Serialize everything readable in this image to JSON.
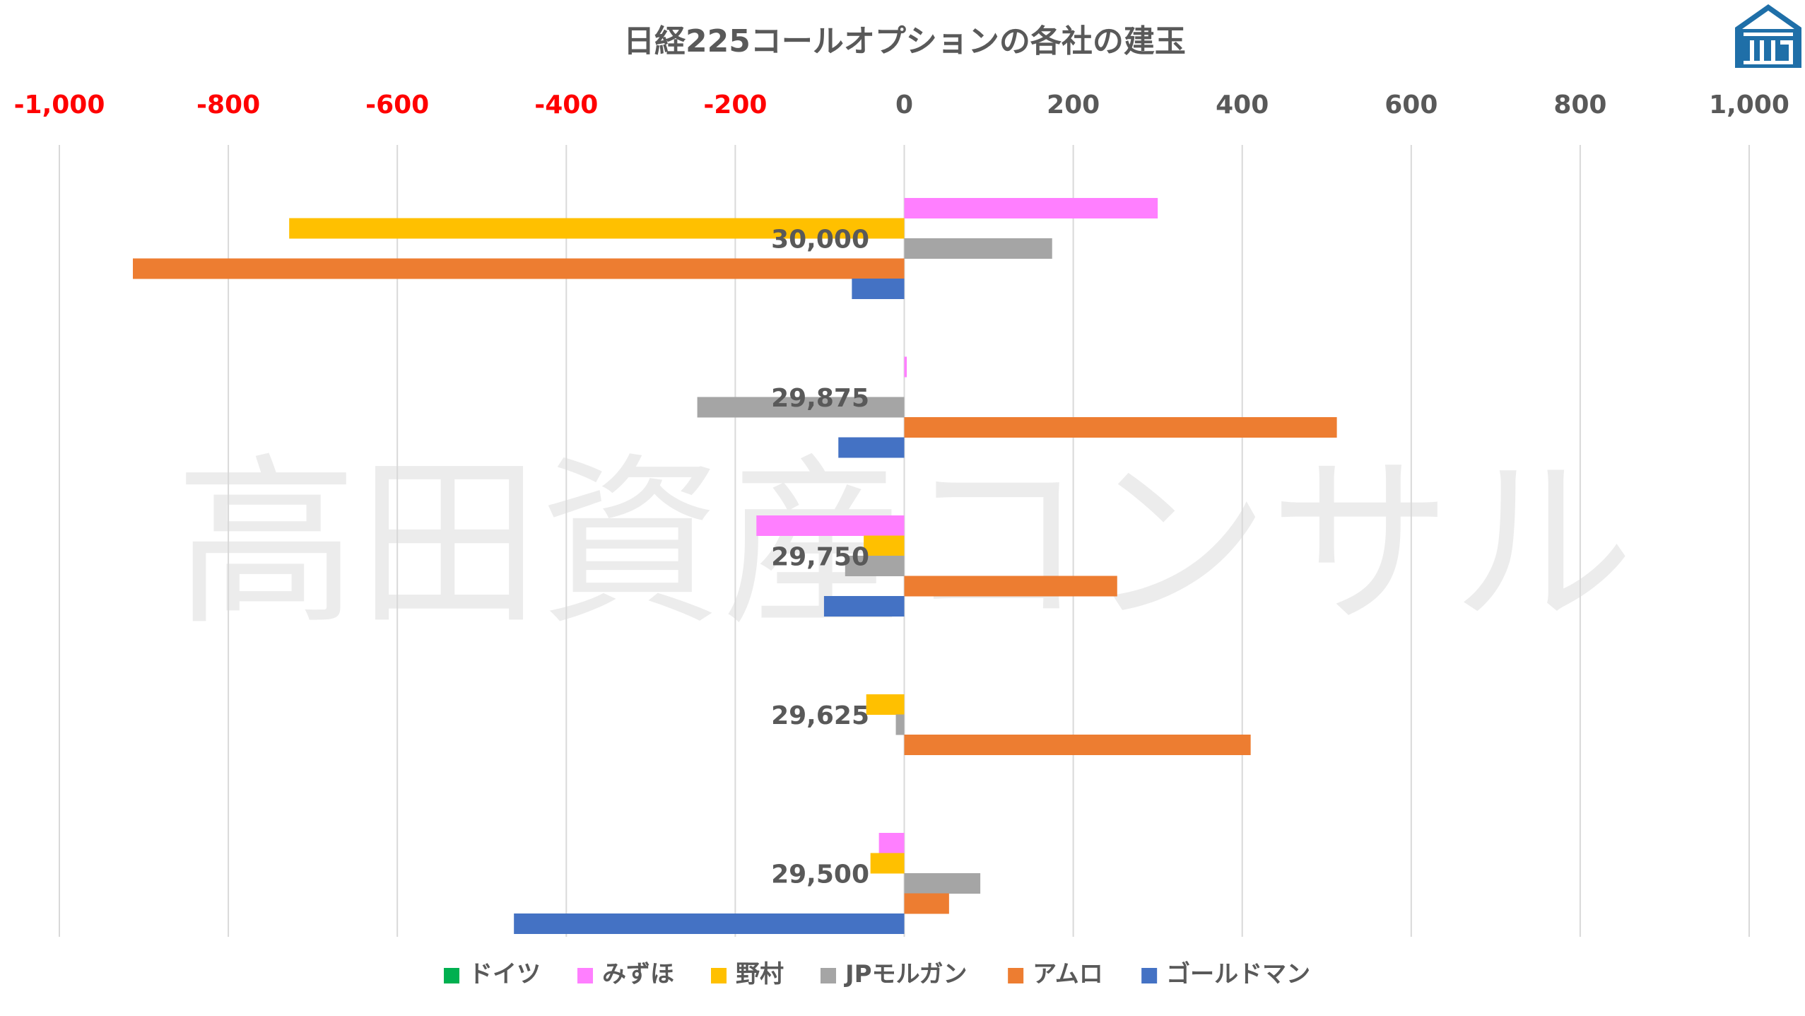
{
  "chart_data": {
    "type": "bar",
    "orientation": "horizontal",
    "title": "日経225コールオプションの各社の建玉",
    "xlim": [
      -1000,
      1000
    ],
    "x_ticks": [
      -1000,
      -800,
      -600,
      -400,
      -200,
      0,
      200,
      400,
      600,
      800,
      1000
    ],
    "x_tick_labels": [
      "-1,000",
      "-800",
      "-600",
      "-400",
      "-200",
      "0",
      "200",
      "400",
      "600",
      "800",
      "1,000"
    ],
    "x_axis_position": "top",
    "negative_tick_color": "#ff0000",
    "positive_tick_color": "#595959",
    "categories": [
      "30,000",
      "29,875",
      "29,750",
      "29,625",
      "29,500"
    ],
    "series": [
      {
        "name": "ドイツ",
        "color": "#00b050",
        "values": [
          0,
          0,
          0,
          0,
          0
        ]
      },
      {
        "name": "みずほ",
        "color": "#ff7fff",
        "values": [
          300,
          3,
          -175,
          0,
          -30
        ]
      },
      {
        "name": "野村",
        "color": "#ffc000",
        "values": [
          -728,
          0,
          -48,
          -45,
          -40
        ]
      },
      {
        "name": "JPモルガン",
        "color": "#a5a5a5",
        "values": [
          175,
          -245,
          -70,
          -10,
          90
        ]
      },
      {
        "name": "アムロ",
        "color": "#ed7d31",
        "values": [
          -913,
          512,
          252,
          410,
          53
        ]
      },
      {
        "name": "ゴールドマン",
        "color": "#4472c4",
        "values": [
          -62,
          -78,
          -95,
          0,
          -462
        ]
      }
    ],
    "gridlines": "vertical",
    "legend_position": "bottom"
  },
  "watermark": "高田資産コンサル",
  "logo": {
    "icon": "roof-building-logo-icon",
    "color": "#1f6fa8"
  }
}
